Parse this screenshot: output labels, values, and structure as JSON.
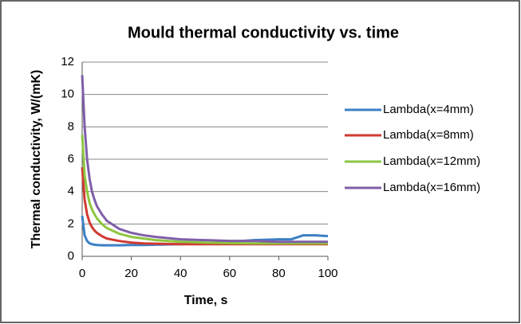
{
  "chart_data": {
    "type": "line",
    "title": "Mould thermal conductivity vs. time",
    "xlabel": "Time, s",
    "ylabel": "Thermal conductivity, W/(mK)",
    "x": [
      0,
      1,
      2,
      3,
      4,
      5,
      6,
      8,
      10,
      15,
      20,
      25,
      30,
      40,
      50,
      60,
      70,
      80,
      85,
      90,
      95,
      100
    ],
    "series": [
      {
        "name": "Lambda(x=4mm)",
        "color": "#3c7fc4",
        "values": [
          2.5,
          1.3,
          0.95,
          0.8,
          0.75,
          0.72,
          0.7,
          0.68,
          0.68,
          0.68,
          0.7,
          0.7,
          0.72,
          0.75,
          0.8,
          0.9,
          1.0,
          1.05,
          1.05,
          1.3,
          1.3,
          1.25
        ]
      },
      {
        "name": "Lambda(x=8mm)",
        "color": "#d03a32",
        "values": [
          5.5,
          3.5,
          2.6,
          2.1,
          1.8,
          1.6,
          1.45,
          1.25,
          1.1,
          0.95,
          0.85,
          0.8,
          0.78,
          0.75,
          0.75,
          0.75,
          0.75,
          0.75,
          0.75,
          0.75,
          0.75,
          0.75
        ]
      },
      {
        "name": "Lambda(x=12mm)",
        "color": "#8dc63f",
        "values": [
          7.5,
          5.0,
          4.0,
          3.3,
          2.9,
          2.6,
          2.35,
          2.0,
          1.75,
          1.4,
          1.2,
          1.1,
          1.0,
          0.9,
          0.85,
          0.82,
          0.8,
          0.8,
          0.8,
          0.8,
          0.8,
          0.8
        ]
      },
      {
        "name": "Lambda(x=16mm)",
        "color": "#7f5ea8",
        "values": [
          11.2,
          8.0,
          6.0,
          4.8,
          4.0,
          3.5,
          3.1,
          2.6,
          2.2,
          1.7,
          1.45,
          1.3,
          1.2,
          1.05,
          1.0,
          0.95,
          0.95,
          0.9,
          0.9,
          0.9,
          0.9,
          0.9
        ]
      }
    ],
    "xlim": [
      0,
      100
    ],
    "xticks": [
      0,
      20,
      40,
      60,
      80,
      100
    ],
    "ylim": [
      0,
      12
    ],
    "yticks": [
      0,
      2,
      4,
      6,
      8,
      10,
      12
    ],
    "grid": true,
    "legend": "right"
  }
}
